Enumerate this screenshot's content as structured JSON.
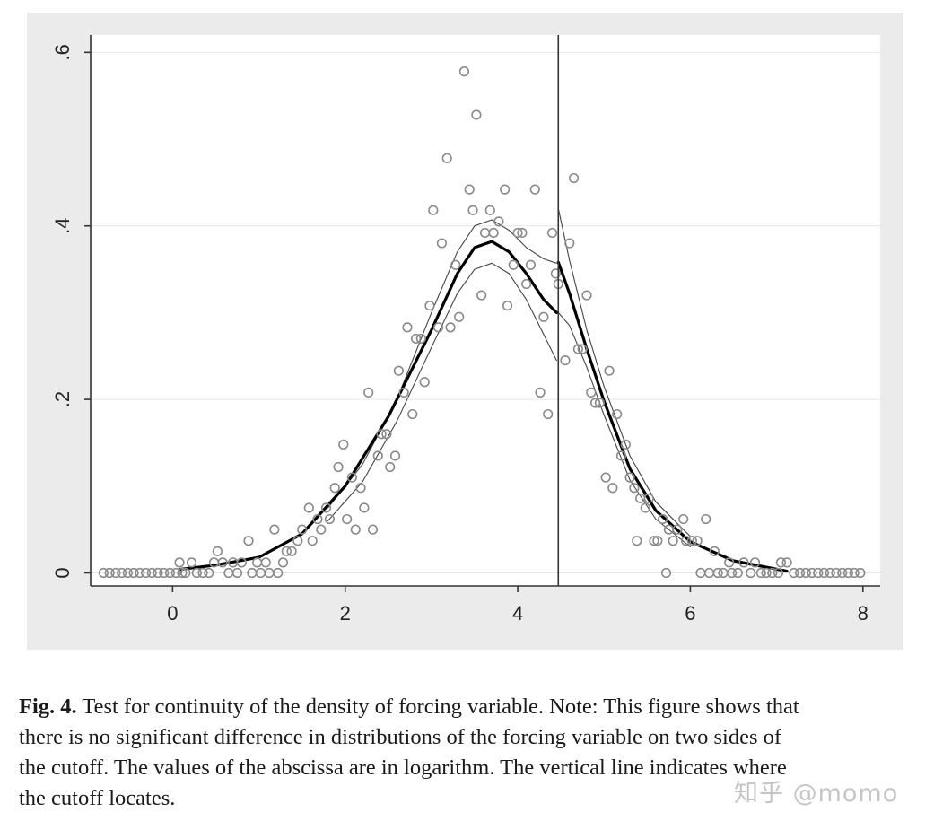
{
  "chart_data": {
    "type": "scatter",
    "title": "",
    "xlabel": "",
    "ylabel": "",
    "xlim": [
      -0.95,
      8.2
    ],
    "ylim": [
      -0.015,
      0.62
    ],
    "x_ticks": [
      0,
      2,
      4,
      6,
      8
    ],
    "x_tick_labels": [
      "0",
      "2",
      "4",
      "6",
      "8"
    ],
    "y_ticks": [
      0,
      0.2,
      0.4,
      0.6
    ],
    "y_tick_labels": [
      "0",
      ".2",
      ".4",
      ".6"
    ],
    "grid": "horizontal",
    "cutoff": 4.47,
    "series": [
      {
        "name": "bin density",
        "style": "hollow-circle",
        "points": [
          [
            -0.8,
            0
          ],
          [
            -0.73,
            0
          ],
          [
            -0.66,
            0
          ],
          [
            -0.59,
            0
          ],
          [
            -0.52,
            0
          ],
          [
            -0.45,
            0
          ],
          [
            -0.38,
            0
          ],
          [
            -0.31,
            0
          ],
          [
            -0.24,
            0
          ],
          [
            -0.17,
            0
          ],
          [
            -0.1,
            0
          ],
          [
            -0.03,
            0
          ],
          [
            0.04,
            0
          ],
          [
            0.11,
            0
          ],
          [
            0.08,
            0.012
          ],
          [
            0.15,
            0
          ],
          [
            0.22,
            0.012
          ],
          [
            0.28,
            0
          ],
          [
            0.35,
            0
          ],
          [
            0.42,
            0
          ],
          [
            0.48,
            0.012
          ],
          [
            0.52,
            0.025
          ],
          [
            0.58,
            0.012
          ],
          [
            0.65,
            0
          ],
          [
            0.7,
            0.012
          ],
          [
            0.75,
            0
          ],
          [
            0.8,
            0.012
          ],
          [
            0.88,
            0.037
          ],
          [
            0.92,
            0
          ],
          [
            0.98,
            0.012
          ],
          [
            1.02,
            0
          ],
          [
            1.08,
            0.012
          ],
          [
            1.12,
            0
          ],
          [
            1.18,
            0.05
          ],
          [
            1.22,
            0
          ],
          [
            1.28,
            0.012
          ],
          [
            1.32,
            0.025
          ],
          [
            1.38,
            0.025
          ],
          [
            1.45,
            0.037
          ],
          [
            1.5,
            0.05
          ],
          [
            1.58,
            0.075
          ],
          [
            1.62,
            0.037
          ],
          [
            1.68,
            0.062
          ],
          [
            1.72,
            0.05
          ],
          [
            1.78,
            0.075
          ],
          [
            1.82,
            0.062
          ],
          [
            1.88,
            0.098
          ],
          [
            1.92,
            0.122
          ],
          [
            1.98,
            0.148
          ],
          [
            2.02,
            0.062
          ],
          [
            2.08,
            0.11
          ],
          [
            2.12,
            0.05
          ],
          [
            2.18,
            0.098
          ],
          [
            2.22,
            0.075
          ],
          [
            2.27,
            0.208
          ],
          [
            2.32,
            0.05
          ],
          [
            2.38,
            0.135
          ],
          [
            2.42,
            0.16
          ],
          [
            2.48,
            0.16
          ],
          [
            2.52,
            0.122
          ],
          [
            2.58,
            0.135
          ],
          [
            2.62,
            0.233
          ],
          [
            2.68,
            0.208
          ],
          [
            2.72,
            0.283
          ],
          [
            2.78,
            0.183
          ],
          [
            2.82,
            0.27
          ],
          [
            2.88,
            0.27
          ],
          [
            2.92,
            0.22
          ],
          [
            2.98,
            0.308
          ],
          [
            3.02,
            0.418
          ],
          [
            3.08,
            0.283
          ],
          [
            3.12,
            0.38
          ],
          [
            3.18,
            0.478
          ],
          [
            3.22,
            0.283
          ],
          [
            3.28,
            0.355
          ],
          [
            3.32,
            0.295
          ],
          [
            3.38,
            0.578
          ],
          [
            3.44,
            0.442
          ],
          [
            3.48,
            0.418
          ],
          [
            3.52,
            0.528
          ],
          [
            3.58,
            0.32
          ],
          [
            3.62,
            0.392
          ],
          [
            3.68,
            0.418
          ],
          [
            3.72,
            0.392
          ],
          [
            3.78,
            0.405
          ],
          [
            3.85,
            0.442
          ],
          [
            3.88,
            0.308
          ],
          [
            3.95,
            0.355
          ],
          [
            4.0,
            0.392
          ],
          [
            4.05,
            0.392
          ],
          [
            4.1,
            0.333
          ],
          [
            4.15,
            0.355
          ],
          [
            4.2,
            0.442
          ],
          [
            4.26,
            0.208
          ],
          [
            4.3,
            0.295
          ],
          [
            4.35,
            0.183
          ],
          [
            4.4,
            0.392
          ],
          [
            4.44,
            0.345
          ],
          [
            4.47,
            0.333
          ],
          [
            4.55,
            0.245
          ],
          [
            4.6,
            0.38
          ],
          [
            4.65,
            0.455
          ],
          [
            4.7,
            0.258
          ],
          [
            4.75,
            0.258
          ],
          [
            4.8,
            0.32
          ],
          [
            4.85,
            0.208
          ],
          [
            4.9,
            0.196
          ],
          [
            4.95,
            0.196
          ],
          [
            5.02,
            0.11
          ],
          [
            5.06,
            0.233
          ],
          [
            5.1,
            0.098
          ],
          [
            5.15,
            0.183
          ],
          [
            5.2,
            0.135
          ],
          [
            5.25,
            0.148
          ],
          [
            5.3,
            0.11
          ],
          [
            5.35,
            0.098
          ],
          [
            5.38,
            0.037
          ],
          [
            5.42,
            0.086
          ],
          [
            5.48,
            0.075
          ],
          [
            5.52,
            0.086
          ],
          [
            5.58,
            0.037
          ],
          [
            5.62,
            0.037
          ],
          [
            5.68,
            0.062
          ],
          [
            5.72,
            0
          ],
          [
            5.75,
            0.05
          ],
          [
            5.8,
            0.037
          ],
          [
            5.85,
            0.05
          ],
          [
            5.92,
            0.062
          ],
          [
            5.95,
            0.037
          ],
          [
            6.02,
            0.037
          ],
          [
            6.08,
            0.037
          ],
          [
            6.12,
            0
          ],
          [
            6.18,
            0.062
          ],
          [
            6.22,
            0
          ],
          [
            6.28,
            0.025
          ],
          [
            6.32,
            0
          ],
          [
            6.38,
            0
          ],
          [
            6.45,
            0.012
          ],
          [
            6.48,
            0
          ],
          [
            6.55,
            0
          ],
          [
            6.62,
            0.012
          ],
          [
            6.7,
            0
          ],
          [
            6.75,
            0.012
          ],
          [
            6.82,
            0
          ],
          [
            6.88,
            0
          ],
          [
            6.95,
            0
          ],
          [
            7.02,
            0
          ],
          [
            7.05,
            0.012
          ],
          [
            7.12,
            0.012
          ],
          [
            7.2,
            0
          ],
          [
            7.27,
            0
          ],
          [
            7.34,
            0
          ],
          [
            7.41,
            0
          ],
          [
            7.48,
            0
          ],
          [
            7.55,
            0
          ],
          [
            7.62,
            0
          ],
          [
            7.69,
            0
          ],
          [
            7.76,
            0
          ],
          [
            7.83,
            0
          ],
          [
            7.9,
            0
          ],
          [
            7.97,
            0
          ]
        ]
      },
      {
        "name": "fitted density (left)",
        "style": "thick-line",
        "points": [
          [
            0.08,
            0.004
          ],
          [
            0.5,
            0.009
          ],
          [
            1.0,
            0.018
          ],
          [
            1.5,
            0.045
          ],
          [
            2.0,
            0.1
          ],
          [
            2.5,
            0.18
          ],
          [
            3.0,
            0.28
          ],
          [
            3.3,
            0.345
          ],
          [
            3.5,
            0.375
          ],
          [
            3.7,
            0.382
          ],
          [
            3.9,
            0.37
          ],
          [
            4.1,
            0.345
          ],
          [
            4.3,
            0.315
          ],
          [
            4.45,
            0.3
          ]
        ]
      },
      {
        "name": "fitted density (right)",
        "style": "thick-line",
        "points": [
          [
            4.47,
            0.358
          ],
          [
            4.6,
            0.322
          ],
          [
            4.8,
            0.258
          ],
          [
            5.0,
            0.198
          ],
          [
            5.3,
            0.12
          ],
          [
            5.6,
            0.072
          ],
          [
            6.0,
            0.036
          ],
          [
            6.5,
            0.014
          ],
          [
            7.12,
            0.002
          ]
        ]
      },
      {
        "name": "upper ci (left)",
        "style": "thin-line",
        "points": [
          [
            1.8,
            0.075
          ],
          [
            2.2,
            0.125
          ],
          [
            2.6,
            0.2
          ],
          [
            3.0,
            0.3
          ],
          [
            3.3,
            0.37
          ],
          [
            3.5,
            0.4
          ],
          [
            3.7,
            0.407
          ],
          [
            3.9,
            0.395
          ],
          [
            4.1,
            0.375
          ],
          [
            4.3,
            0.362
          ],
          [
            4.45,
            0.357
          ]
        ]
      },
      {
        "name": "lower ci (left)",
        "style": "thin-line",
        "points": [
          [
            1.8,
            0.06
          ],
          [
            2.2,
            0.105
          ],
          [
            2.6,
            0.175
          ],
          [
            3.0,
            0.26
          ],
          [
            3.3,
            0.322
          ],
          [
            3.5,
            0.35
          ],
          [
            3.7,
            0.357
          ],
          [
            3.9,
            0.345
          ],
          [
            4.1,
            0.315
          ],
          [
            4.3,
            0.275
          ],
          [
            4.45,
            0.245
          ]
        ]
      },
      {
        "name": "upper ci (right)",
        "style": "thin-line",
        "points": [
          [
            4.47,
            0.42
          ],
          [
            4.6,
            0.36
          ],
          [
            4.8,
            0.28
          ],
          [
            5.0,
            0.215
          ],
          [
            5.3,
            0.135
          ],
          [
            5.6,
            0.082
          ],
          [
            6.0,
            0.042
          ]
        ]
      },
      {
        "name": "lower ci (right)",
        "style": "thin-line",
        "points": [
          [
            4.47,
            0.3
          ],
          [
            4.6,
            0.285
          ],
          [
            4.8,
            0.237
          ],
          [
            5.0,
            0.182
          ],
          [
            5.3,
            0.107
          ],
          [
            5.6,
            0.062
          ],
          [
            6.0,
            0.03
          ]
        ]
      }
    ]
  },
  "caption": {
    "label": "Fig. 4.",
    "lines": [
      " Test for continuity of the density of forcing variable. Note: This figure shows that",
      "there is no significant difference in distributions of the forcing variable on two sides of",
      "the cutoff. The values of the abscissa are in logarithm. The vertical line indicates where",
      "the cutoff locates."
    ]
  },
  "watermark": "知乎 @momo"
}
